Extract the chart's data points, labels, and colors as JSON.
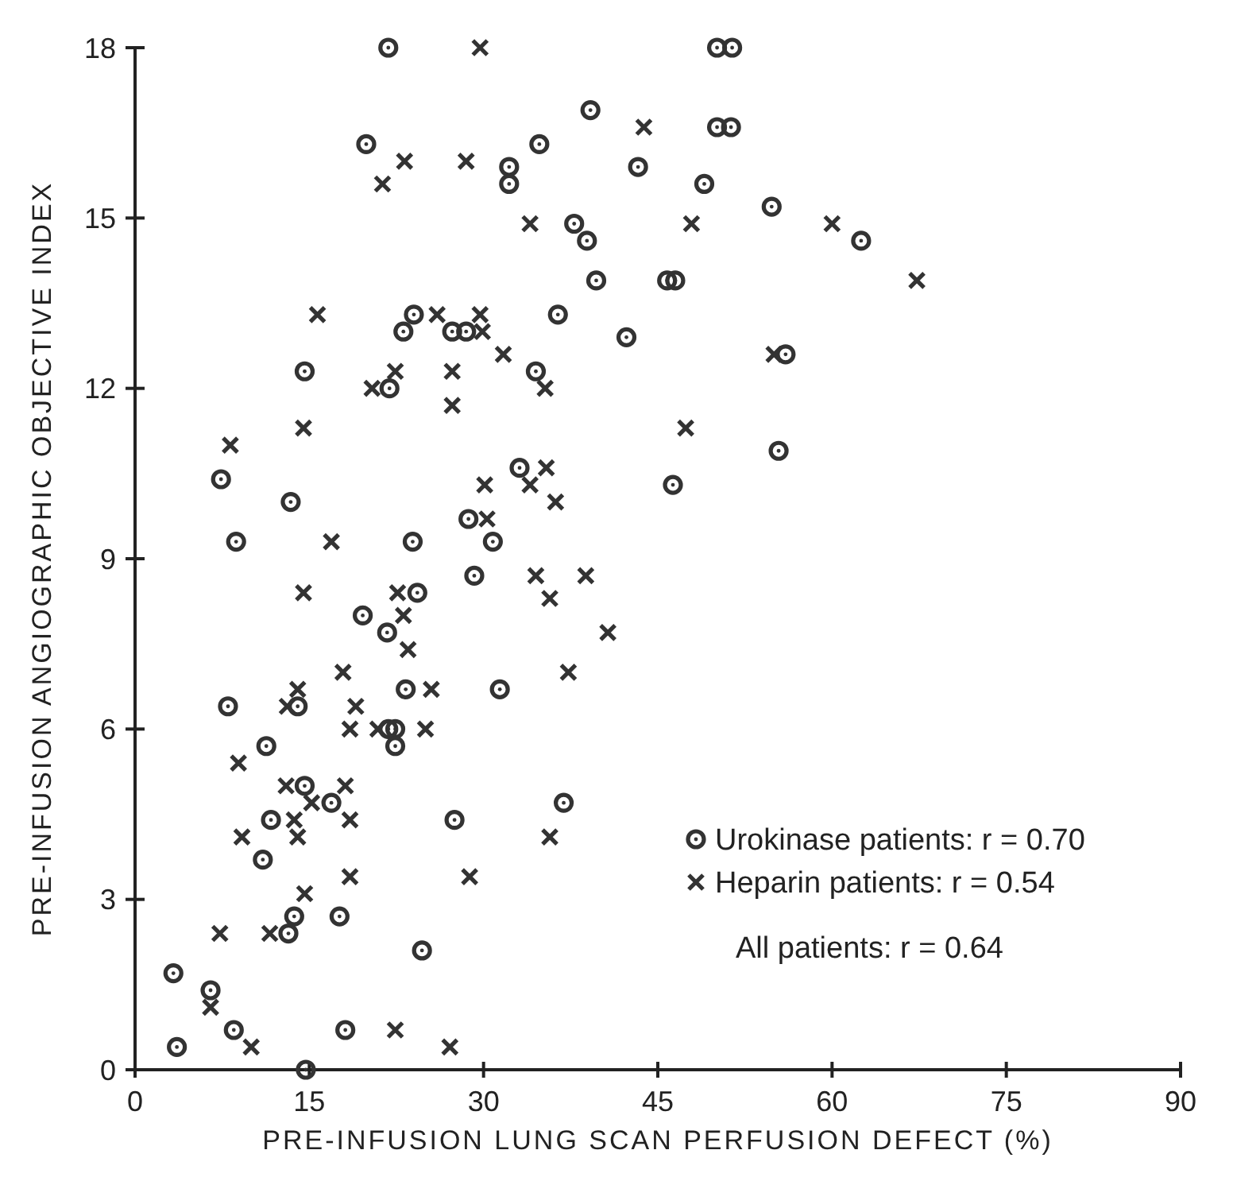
{
  "chart_data": {
    "type": "scatter",
    "xlabel": "PRE-INFUSION LUNG SCAN PERFUSION DEFECT (%)",
    "ylabel": "PRE-INFUSION ANGIOGRAPHIC OBJECTIVE INDEX",
    "xlim": [
      0,
      90
    ],
    "xticks": [
      0,
      15,
      30,
      45,
      60,
      75,
      90
    ],
    "ylim": [
      0,
      18
    ],
    "yticks": [
      0,
      3,
      6,
      9,
      12,
      15,
      18
    ],
    "grid": false,
    "legend": "bottom right",
    "annotations": [
      "All patients: r = 0.64"
    ],
    "series": [
      {
        "name": "Urokinase patients: r = 0.70",
        "color": "#333333",
        "marker": "circle",
        "x": [
          21.8,
          19.9,
          24.0,
          23.1,
          27.3,
          28.5,
          50.1,
          51.4,
          39.2,
          50.1,
          51.3,
          34.8,
          32.2,
          32.2,
          43.3,
          49.0,
          54.8,
          37.8,
          38.9,
          62.5,
          39.7,
          45.8,
          46.5,
          36.4,
          42.3,
          34.5,
          56.0,
          14.6,
          21.9,
          7.4,
          13.4,
          28.7,
          30.8,
          8.7,
          23.9,
          29.2,
          24.3,
          19.6,
          21.7,
          23.3,
          55.4,
          33.1,
          46.3,
          31.4,
          8.0,
          14.0,
          21.8,
          22.4,
          11.3,
          22.4,
          14.6,
          16.9,
          11.7,
          27.5,
          11.0,
          13.7,
          17.6,
          13.2,
          24.7,
          3.3,
          6.5,
          8.5,
          18.1,
          3.6,
          14.7,
          36.9
        ],
        "values": [
          18,
          16.3,
          13.3,
          13.0,
          13.0,
          13.0,
          18,
          18,
          16.9,
          16.6,
          16.6,
          16.3,
          15.9,
          15.6,
          15.9,
          15.6,
          15.2,
          14.9,
          14.6,
          14.6,
          13.9,
          13.9,
          13.9,
          13.3,
          12.9,
          12.3,
          12.6,
          12.3,
          12.0,
          10.4,
          10.0,
          9.7,
          9.3,
          9.3,
          9.3,
          8.7,
          8.4,
          8.0,
          7.7,
          6.7,
          10.9,
          10.6,
          10.3,
          6.7,
          6.4,
          6.4,
          6.0,
          6.0,
          5.7,
          5.7,
          5.0,
          4.7,
          4.4,
          4.4,
          3.7,
          2.7,
          2.7,
          2.4,
          2.1,
          1.7,
          1.4,
          0.7,
          0.7,
          0.4,
          0,
          4.7
        ]
      },
      {
        "name": "Heparin patients: r = 0.54",
        "color": "#333333",
        "marker": "cross",
        "x": [
          29.7,
          23.2,
          28.5,
          21.3,
          15.7,
          26.0,
          29.7,
          29.9,
          43.8,
          34.0,
          47.9,
          60.0,
          67.3,
          31.7,
          55.0,
          22.4,
          27.3,
          20.4,
          27.3,
          14.5,
          8.2,
          30.1,
          30.3,
          16.9,
          14.5,
          22.6,
          23.1,
          23.5,
          17.9,
          14.0,
          25.5,
          35.3,
          47.4,
          35.4,
          34.0,
          36.2,
          34.5,
          38.8,
          35.7,
          40.7,
          37.3,
          13.1,
          19.0,
          18.5,
          20.9,
          25.0,
          8.9,
          13.0,
          18.1,
          15.2,
          13.7,
          18.5,
          9.2,
          14.0,
          18.5,
          28.8,
          14.6,
          11.6,
          7.3,
          6.5,
          22.4,
          10.0,
          27.1,
          35.7
        ],
        "values": [
          18,
          16.0,
          16.0,
          15.6,
          13.3,
          13.3,
          13.3,
          13.0,
          16.6,
          14.9,
          14.9,
          14.9,
          13.9,
          12.6,
          12.6,
          12.3,
          12.3,
          12.0,
          11.7,
          11.3,
          11.0,
          10.3,
          9.7,
          9.3,
          8.4,
          8.4,
          8.0,
          7.4,
          7.0,
          6.7,
          6.7,
          12.0,
          11.3,
          10.6,
          10.3,
          10.0,
          8.7,
          8.7,
          8.3,
          7.7,
          7.0,
          6.4,
          6.4,
          6.0,
          6.0,
          6.0,
          5.4,
          5.0,
          5.0,
          4.7,
          4.4,
          4.4,
          4.1,
          4.1,
          3.4,
          3.4,
          3.1,
          2.4,
          2.4,
          1.1,
          0.7,
          0.4,
          0.4,
          4.1
        ]
      }
    ]
  }
}
